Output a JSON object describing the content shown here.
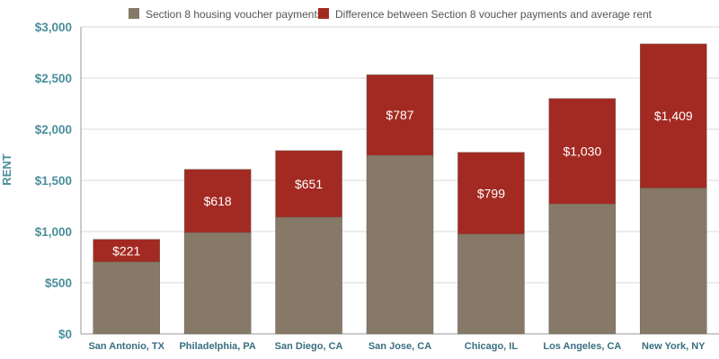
{
  "chart_data": {
    "type": "bar",
    "stacked": true,
    "title": "",
    "xlabel": "",
    "ylabel": "RENT",
    "ylim": [
      0,
      3000
    ],
    "yticks": [
      "$0",
      "$500",
      "$1,000",
      "$1,500",
      "$2,000",
      "$2,500",
      "$3,000"
    ],
    "ytick_values": [
      0,
      500,
      1000,
      1500,
      2000,
      2500,
      3000
    ],
    "categories": [
      "San Antonio, TX",
      "Philadelphia, PA",
      "San Diego, CA",
      "San Jose, CA",
      "Chicago, IL",
      "Los Angeles, CA",
      "New York, NY"
    ],
    "series": [
      {
        "name": "Section 8 housing voucher payments",
        "color": "#877968",
        "values": [
          703,
          990,
          1140,
          1745,
          975,
          1270,
          1425
        ]
      },
      {
        "name": "Difference between Section 8 voucher payments and average rent",
        "color": "#a32a22",
        "values": [
          221,
          618,
          651,
          787,
          799,
          1030,
          1409
        ],
        "labels": [
          "$221",
          "$618",
          "$651",
          "$787",
          "$799",
          "$1,030",
          "$1,409"
        ]
      }
    ],
    "legend_position": "top",
    "grid": true
  }
}
